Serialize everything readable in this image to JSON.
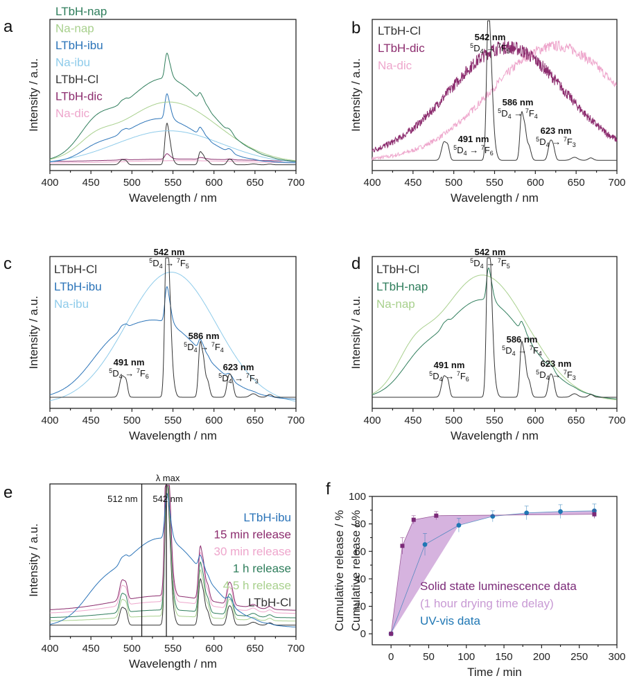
{
  "colors": {
    "LTbH-nap": "#2e7d5b",
    "Na-nap": "#a8d08d",
    "LTbH-ibu": "#2a73b8",
    "Na-ibu": "#8ecbea",
    "LTbH-Cl": "#333333",
    "LTbH-dic": "#8c2c6e",
    "Na-dic": "#eea6cc",
    "15 min release": "#8c2c6e",
    "30 min release": "#eea6cc",
    "1 h release": "#2e7d5b",
    "4.5 h release": "#a8d08d",
    "solid": "#7b2a78",
    "solid_fill": "#c89ad4",
    "uv": "#1f77b4"
  },
  "chart_data": [
    {
      "panel": "a",
      "type": "line",
      "xlabel": "Wavelength / nm",
      "ylabel": "Intensity / a.u.",
      "xlim": [
        400,
        700
      ],
      "xticks": [
        "400",
        "450",
        "500",
        "550",
        "600",
        "650",
        "700"
      ],
      "legend": [
        "LTbH-nap",
        "Na-nap",
        "LTbH-ibu",
        "Na-ibu",
        "LTbH-Cl",
        "LTbH-dic",
        "Na-dic"
      ],
      "legend_position": "top-left",
      "annotations": []
    },
    {
      "panel": "b",
      "type": "line",
      "xlabel": "Wavelength / nm",
      "ylabel": "Intensity / a.u.",
      "xlim": [
        400,
        700
      ],
      "xticks": [
        "400",
        "450",
        "500",
        "550",
        "600",
        "650",
        "700"
      ],
      "legend": [
        "LTbH-Cl",
        "LTbH-dic",
        "Na-dic"
      ],
      "legend_position": "top-left",
      "annotations": [
        {
          "nm": "542 nm",
          "from": "D",
          "from_sup": "5",
          "from_sub": "4",
          "to": "F",
          "to_sup": "7",
          "to_sub": "5"
        },
        {
          "nm": "586 nm",
          "from": "D",
          "from_sup": "5",
          "from_sub": "4",
          "to": "F",
          "to_sup": "7",
          "to_sub": "4"
        },
        {
          "nm": "491 nm",
          "from": "D",
          "from_sup": "5",
          "from_sub": "4",
          "to": "F",
          "to_sup": "7",
          "to_sub": "6"
        },
        {
          "nm": "623 nm",
          "from": "D",
          "from_sup": "5",
          "from_sub": "4",
          "to": "F",
          "to_sup": "7",
          "to_sub": "3"
        }
      ]
    },
    {
      "panel": "c",
      "type": "line",
      "xlabel": "Wavelength / nm",
      "ylabel": "Intensity / a.u.",
      "xlim": [
        400,
        700
      ],
      "xticks": [
        "400",
        "450",
        "500",
        "550",
        "600",
        "650",
        "700"
      ],
      "legend": [
        "LTbH-Cl",
        "LTbH-ibu",
        "Na-ibu"
      ],
      "legend_position": "top-left",
      "annotations": [
        {
          "nm": "542 nm",
          "from": "D",
          "from_sup": "5",
          "from_sub": "4",
          "to": "F",
          "to_sup": "7",
          "to_sub": "5"
        },
        {
          "nm": "586 nm",
          "from": "D",
          "from_sup": "5",
          "from_sub": "4",
          "to": "F",
          "to_sup": "7",
          "to_sub": "4"
        },
        {
          "nm": "491 nm",
          "from": "D",
          "from_sup": "5",
          "from_sub": "4",
          "to": "F",
          "to_sup": "7",
          "to_sub": "6"
        },
        {
          "nm": "623 nm",
          "from": "D",
          "from_sup": "5",
          "from_sub": "4",
          "to": "F",
          "to_sup": "7",
          "to_sub": "3"
        }
      ]
    },
    {
      "panel": "d",
      "type": "line",
      "xlabel": "Wavelength / nm",
      "ylabel": "Intensity / a.u.",
      "xlim": [
        400,
        700
      ],
      "xticks": [
        "400",
        "450",
        "500",
        "550",
        "600",
        "650",
        "700"
      ],
      "legend": [
        "LTbH-Cl",
        "LTbH-nap",
        "Na-nap"
      ],
      "legend_position": "top-left",
      "annotations": [
        {
          "nm": "542 nm",
          "from": "D",
          "from_sup": "5",
          "from_sub": "4",
          "to": "F",
          "to_sup": "7",
          "to_sub": "5"
        },
        {
          "nm": "586 nm",
          "from": "D",
          "from_sup": "5",
          "from_sub": "4",
          "to": "F",
          "to_sup": "7",
          "to_sub": "4"
        },
        {
          "nm": "491 nm",
          "from": "D",
          "from_sup": "5",
          "from_sub": "4",
          "to": "F",
          "to_sup": "7",
          "to_sub": "6"
        },
        {
          "nm": "623 nm",
          "from": "D",
          "from_sup": "5",
          "from_sub": "4",
          "to": "F",
          "to_sup": "7",
          "to_sub": "3"
        }
      ]
    },
    {
      "panel": "e",
      "type": "line",
      "xlabel": "Wavelength / nm",
      "ylabel": "Intensity / a.u.",
      "xlim": [
        400,
        700
      ],
      "xticks": [
        "400",
        "450",
        "500",
        "550",
        "600",
        "650",
        "700"
      ],
      "legend": [
        "LTbH-ibu",
        "15 min release",
        "30 min release",
        "1 h release",
        "4.5 h release",
        "LTbH-Cl"
      ],
      "legend_position": "top-right",
      "vlines": [
        {
          "x": 512,
          "label": "512 nm"
        },
        {
          "x": 542,
          "label_top": "λ max",
          "label": "542 nm"
        }
      ]
    },
    {
      "panel": "f",
      "type": "scatter",
      "xlabel": "Time / min",
      "ylabel": "Cumulative release / %",
      "xlim": [
        -25,
        300
      ],
      "ylim": [
        -8,
        100
      ],
      "xticks": [
        "0",
        "50",
        "100",
        "150",
        "200",
        "250",
        "300"
      ],
      "yticks": [
        "0",
        "20",
        "40",
        "60",
        "80",
        "100"
      ],
      "series": [
        {
          "name": "Solid state luminescence data",
          "x": [
            0,
            15,
            30,
            60,
            270
          ],
          "y": [
            0,
            64,
            83,
            86,
            87
          ],
          "err": [
            1,
            6,
            3,
            3,
            3
          ]
        },
        {
          "name": "UV-vis data",
          "x": [
            0,
            45,
            90,
            135,
            180,
            225,
            270
          ],
          "y": [
            0,
            65,
            79,
            85.5,
            88,
            89,
            89.5
          ],
          "err": [
            1,
            8,
            5,
            4,
            5,
            5,
            5
          ]
        }
      ],
      "legend_note": "(1 hour drying time delay)",
      "legend_position": "bottom-right"
    }
  ],
  "panel_letters": [
    "a",
    "b",
    "c",
    "d",
    "e",
    "f"
  ]
}
